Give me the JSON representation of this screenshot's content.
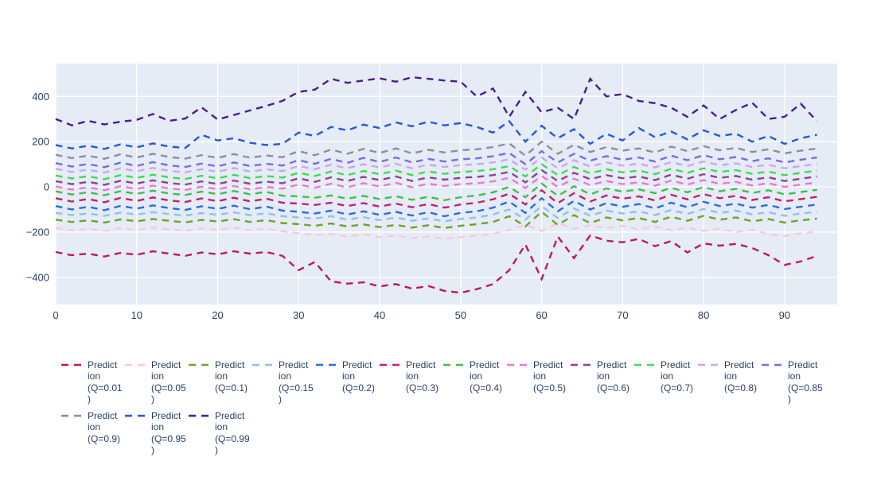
{
  "figure": {
    "background": "#ffffff",
    "plot_background": "#E5ECF6",
    "grid_color": "#ffffff",
    "tick_label_color": "#2a3f5f",
    "legend_text_color": "#2a3f5f"
  },
  "chart_data": {
    "type": "line",
    "title": "",
    "xlabel": "",
    "ylabel": "",
    "grid": true,
    "legend_position": "bottom",
    "line_style": "dashed",
    "x_ticks": [
      0,
      10,
      20,
      30,
      40,
      50,
      60,
      70,
      80,
      90
    ],
    "y_ticks": [
      -400,
      -200,
      0,
      200,
      400
    ],
    "xlim": [
      0,
      96.5
    ],
    "ylim": [
      -520,
      545
    ],
    "x_start": 0,
    "x_step": 2,
    "series": [
      {
        "name": "Prediction (Q=0.01)",
        "legend_lines": [
          "Predict",
          "ion",
          "(Q=0.01",
          ")"
        ],
        "color": "#C2175B",
        "values": [
          -288,
          -302,
          -295,
          -308,
          -292,
          -300,
          -285,
          -295,
          -305,
          -290,
          -298,
          -285,
          -295,
          -288,
          -305,
          -368,
          -332,
          -418,
          -428,
          -422,
          -440,
          -430,
          -450,
          -438,
          -460,
          -468,
          -452,
          -430,
          -368,
          -255,
          -408,
          -220,
          -315,
          -215,
          -238,
          -245,
          -230,
          -262,
          -240,
          -290,
          -250,
          -260,
          -252,
          -270,
          -302,
          -345,
          -330,
          -305
        ]
      },
      {
        "name": "Prediction (Q=0.05)",
        "legend_lines": [
          "Predict",
          "ion",
          "(Q=0.05",
          ")"
        ],
        "color": "#F7C9D6",
        "values": [
          -182,
          -192,
          -186,
          -195,
          -183,
          -190,
          -180,
          -188,
          -194,
          -184,
          -190,
          -180,
          -192,
          -185,
          -196,
          -205,
          -212,
          -208,
          -220,
          -210,
          -222,
          -215,
          -228,
          -218,
          -230,
          -222,
          -215,
          -208,
          -190,
          -168,
          -195,
          -160,
          -185,
          -170,
          -182,
          -172,
          -188,
          -175,
          -192,
          -180,
          -195,
          -185,
          -200,
          -190,
          -210,
          -218,
          -205,
          -198
        ]
      },
      {
        "name": "Prediction (Q=0.1)",
        "legend_lines": [
          "Predict",
          "ion",
          "(Q=0.1)"
        ],
        "color": "#74A02A",
        "values": [
          -145,
          -155,
          -148,
          -158,
          -144,
          -152,
          -142,
          -150,
          -157,
          -146,
          -153,
          -143,
          -155,
          -147,
          -160,
          -165,
          -172,
          -162,
          -175,
          -166,
          -178,
          -168,
          -180,
          -170,
          -182,
          -172,
          -165,
          -155,
          -130,
          -175,
          -110,
          -168,
          -125,
          -160,
          -135,
          -148,
          -138,
          -155,
          -132,
          -150,
          -128,
          -145,
          -135,
          -152,
          -142,
          -158,
          -148,
          -140
        ]
      },
      {
        "name": "Prediction (Q=0.15)",
        "legend_lines": [
          "Predict",
          "ion",
          "(Q=0.15",
          ")"
        ],
        "color": "#8FC1EE",
        "values": [
          -115,
          -125,
          -118,
          -128,
          -114,
          -122,
          -112,
          -120,
          -127,
          -116,
          -123,
          -113,
          -125,
          -117,
          -130,
          -135,
          -140,
          -130,
          -145,
          -134,
          -147,
          -136,
          -150,
          -140,
          -152,
          -142,
          -135,
          -122,
          -100,
          -145,
          -85,
          -138,
          -95,
          -128,
          -105,
          -118,
          -108,
          -125,
          -102,
          -120,
          -98,
          -115,
          -105,
          -122,
          -112,
          -128,
          -118,
          -110
        ]
      },
      {
        "name": "Prediction (Q=0.2)",
        "legend_lines": [
          "Predict",
          "ion",
          "(Q=0.2)"
        ],
        "color": "#2B6BE6",
        "values": [
          -85,
          -100,
          -88,
          -103,
          -84,
          -96,
          -82,
          -94,
          -102,
          -86,
          -97,
          -83,
          -99,
          -87,
          -105,
          -110,
          -118,
          -105,
          -122,
          -108,
          -124,
          -110,
          -127,
          -112,
          -130,
          -115,
          -108,
          -92,
          -65,
          -115,
          -50,
          -108,
          -62,
          -100,
          -72,
          -88,
          -76,
          -95,
          -70,
          -90,
          -66,
          -85,
          -74,
          -92,
          -80,
          -98,
          -88,
          -78
        ]
      },
      {
        "name": "Prediction (Q=0.3)",
        "legend_lines": [
          "Predict",
          "ion",
          "(Q=0.3)"
        ],
        "color": "#BE2372",
        "values": [
          -50,
          -65,
          -54,
          -68,
          -49,
          -62,
          -47,
          -60,
          -67,
          -51,
          -63,
          -48,
          -64,
          -52,
          -70,
          -74,
          -80,
          -70,
          -85,
          -72,
          -87,
          -74,
          -90,
          -76,
          -92,
          -78,
          -70,
          -55,
          -30,
          -78,
          -15,
          -72,
          -28,
          -65,
          -38,
          -52,
          -42,
          -60,
          -35,
          -55,
          -32,
          -50,
          -40,
          -58,
          -46,
          -64,
          -54,
          -44
        ]
      },
      {
        "name": "Prediction (Q=0.4)",
        "legend_lines": [
          "Predict",
          "ion",
          "(Q=0.4)"
        ],
        "color": "#43BE4A",
        "values": [
          -20,
          -34,
          -24,
          -37,
          -19,
          -31,
          -17,
          -29,
          -36,
          -21,
          -32,
          -18,
          -33,
          -22,
          -39,
          -42,
          -48,
          -38,
          -52,
          -40,
          -54,
          -42,
          -57,
          -44,
          -59,
          -46,
          -38,
          -24,
          0,
          -46,
          15,
          -40,
          3,
          -33,
          -7,
          -21,
          -11,
          -28,
          -4,
          -24,
          -1,
          -19,
          -9,
          -27,
          -15,
          -33,
          -23,
          -13
        ]
      },
      {
        "name": "Prediction (Q=0.5)",
        "legend_lines": [
          "Predict",
          "ion",
          "(Q=0.5)"
        ],
        "color": "#F075D5",
        "values": [
          2,
          -12,
          -2,
          -15,
          3,
          -9,
          5,
          -7,
          -14,
          1,
          -10,
          4,
          -11,
          0,
          -8,
          10,
          -4,
          14,
          -2,
          16,
          2,
          18,
          -2,
          14,
          4,
          12,
          16,
          24,
          40,
          -5,
          48,
          0,
          36,
          8,
          26,
          12,
          20,
          5,
          28,
          10,
          30,
          14,
          22,
          6,
          16,
          0,
          10,
          20
        ]
      },
      {
        "name": "Prediction (Q=0.6)",
        "legend_lines": [
          "Predict",
          "ion",
          "(Q=0.6)"
        ],
        "color": "#8E4390",
        "values": [
          25,
          12,
          22,
          9,
          27,
          15,
          29,
          17,
          10,
          24,
          13,
          28,
          14,
          23,
          16,
          38,
          22,
          42,
          26,
          44,
          30,
          46,
          26,
          42,
          32,
          40,
          44,
          52,
          66,
          20,
          74,
          26,
          62,
          34,
          52,
          38,
          46,
          30,
          54,
          36,
          56,
          40,
          48,
          32,
          42,
          26,
          36,
          46
        ]
      },
      {
        "name": "Prediction (Q=0.7)",
        "legend_lines": [
          "Predict",
          "ion",
          "(Q=0.7)"
        ],
        "color": "#3CDD4E",
        "values": [
          50,
          37,
          47,
          34,
          52,
          40,
          54,
          42,
          35,
          49,
          38,
          53,
          39,
          48,
          41,
          62,
          48,
          68,
          52,
          70,
          56,
          72,
          52,
          68,
          58,
          66,
          70,
          78,
          92,
          46,
          100,
          52,
          88,
          60,
          78,
          64,
          72,
          56,
          80,
          62,
          82,
          66,
          74,
          58,
          68,
          52,
          62,
          72
        ]
      },
      {
        "name": "Prediction (Q=0.8)",
        "legend_lines": [
          "Predict",
          "ion",
          "(Q=0.8)"
        ],
        "color": "#CBA7EE",
        "values": [
          80,
          66,
          76,
          63,
          82,
          69,
          84,
          71,
          64,
          78,
          67,
          83,
          68,
          77,
          70,
          92,
          78,
          98,
          82,
          100,
          86,
          102,
          82,
          98,
          88,
          96,
          100,
          108,
          122,
          76,
          130,
          82,
          118,
          90,
          108,
          94,
          102,
          86,
          110,
          92,
          112,
          96,
          104,
          88,
          98,
          82,
          92,
          102
        ]
      },
      {
        "name": "Prediction (Q=0.85)",
        "legend_lines": [
          "Predict",
          "ion",
          "(Q=0.85",
          ")"
        ],
        "color": "#7C68E8",
        "values": [
          105,
          90,
          101,
          87,
          107,
          93,
          109,
          95,
          88,
          103,
          91,
          108,
          92,
          102,
          94,
          118,
          102,
          124,
          106,
          128,
          110,
          130,
          108,
          124,
          112,
          122,
          126,
          136,
          150,
          100,
          158,
          108,
          146,
          116,
          136,
          120,
          130,
          112,
          138,
          118,
          140,
          122,
          132,
          114,
          126,
          108,
          120,
          130
        ]
      },
      {
        "name": "Prediction (Q=0.9)",
        "legend_lines": [
          "Predict",
          "ion",
          "(Q=0.9)"
        ],
        "color": "#8D8D9E",
        "values": [
          142,
          127,
          138,
          124,
          144,
          130,
          146,
          132,
          125,
          140,
          128,
          145,
          129,
          139,
          131,
          158,
          140,
          165,
          146,
          168,
          150,
          170,
          148,
          164,
          152,
          162,
          166,
          176,
          192,
          138,
          200,
          146,
          186,
          154,
          176,
          160,
          170,
          152,
          178,
          158,
          180,
          162,
          172,
          154,
          166,
          148,
          160,
          170
        ]
      },
      {
        "name": "Prediction (Q=0.95)",
        "legend_lines": [
          "Predict",
          "ion",
          "(Q=0.95",
          ")"
        ],
        "color": "#2457DC",
        "values": [
          185,
          170,
          182,
          168,
          188,
          175,
          192,
          178,
          172,
          230,
          205,
          215,
          195,
          185,
          190,
          240,
          225,
          265,
          250,
          275,
          260,
          285,
          268,
          288,
          272,
          282,
          265,
          240,
          290,
          200,
          270,
          215,
          255,
          190,
          235,
          205,
          260,
          220,
          245,
          210,
          250,
          225,
          235,
          200,
          225,
          190,
          215,
          230
        ]
      },
      {
        "name": "Prediction (Q=0.99)",
        "legend_lines": [
          "Predict",
          "ion",
          "(Q=0.99",
          ")"
        ],
        "color": "#471D93",
        "values": [
          300,
          272,
          292,
          276,
          288,
          296,
          322,
          292,
          302,
          352,
          298,
          318,
          338,
          358,
          380,
          420,
          430,
          478,
          460,
          470,
          480,
          465,
          485,
          478,
          470,
          465,
          400,
          435,
          310,
          420,
          330,
          350,
          300,
          478,
          400,
          410,
          380,
          370,
          350,
          310,
          360,
          300,
          340,
          372,
          300,
          310,
          368,
          290
        ]
      }
    ]
  }
}
